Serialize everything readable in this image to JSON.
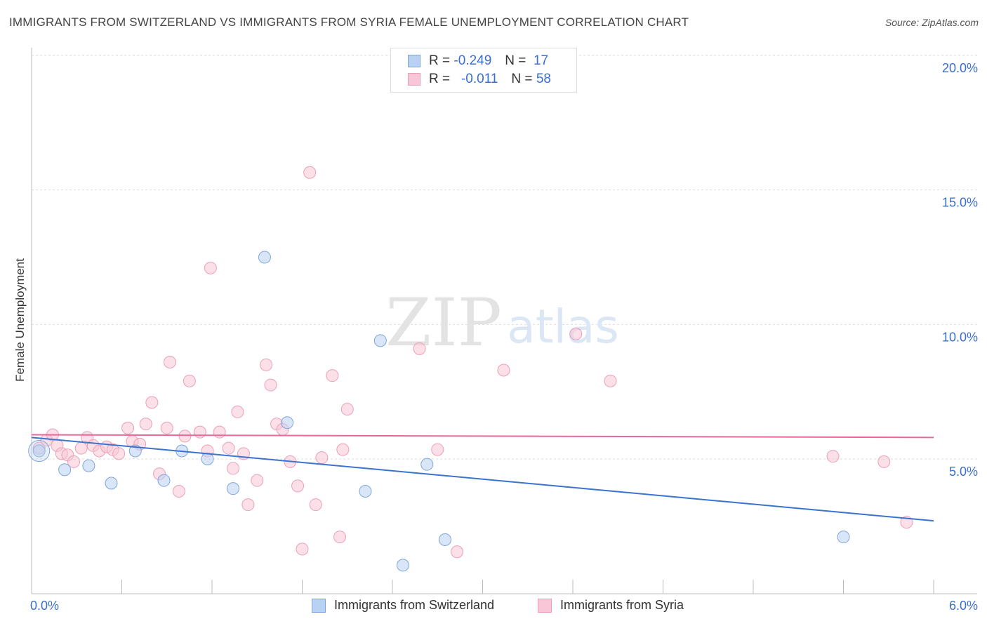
{
  "title": "IMMIGRANTS FROM SWITZERLAND VS IMMIGRANTS FROM SYRIA FEMALE UNEMPLOYMENT CORRELATION CHART",
  "source": "Source: ZipAtlas.com",
  "watermark": {
    "zip": "ZIP",
    "atlas": "atlas"
  },
  "legend": {
    "switzerland": {
      "r_label": "R =",
      "r_value": "-0.249",
      "n_label": "N =",
      "n_value": "17"
    },
    "syria": {
      "r_label": "R =",
      "r_value": "-0.011",
      "n_label": "N =",
      "n_value": "58"
    }
  },
  "colors": {
    "switzerland_fill": "#b9d1f2",
    "switzerland_stroke": "#7fa6dc",
    "switzerland_line": "#3a73d0",
    "syria_fill": "#f8c6d6",
    "syria_stroke": "#eba0b8",
    "syria_line": "#e8689a",
    "tick_label": "#3a6fcf",
    "grid": "#dddddd"
  },
  "chart_data": {
    "type": "scatter",
    "title": "IMMIGRANTS FROM SWITZERLAND VS IMMIGRANTS FROM SYRIA FEMALE UNEMPLOYMENT CORRELATION CHART",
    "xlabel": "",
    "ylabel": "Female Unemployment",
    "xlim": [
      0,
      6
    ],
    "ylim": [
      0,
      20.5
    ],
    "x_tick_labels": [
      "0.0%",
      "6.0%"
    ],
    "y_ticks": [
      5,
      10,
      15,
      20
    ],
    "y_tick_labels": [
      "5.0%",
      "10.0%",
      "15.0%",
      "20.0%"
    ],
    "series": [
      {
        "name": "Immigrants from Switzerland",
        "r": -0.249,
        "n": 17,
        "points": [
          {
            "x": 0.05,
            "y": 5.3
          },
          {
            "x": 0.22,
            "y": 4.6
          },
          {
            "x": 0.38,
            "y": 4.75
          },
          {
            "x": 0.53,
            "y": 4.1
          },
          {
            "x": 0.69,
            "y": 5.3
          },
          {
            "x": 0.88,
            "y": 4.2
          },
          {
            "x": 1.0,
            "y": 5.3
          },
          {
            "x": 1.17,
            "y": 5.0
          },
          {
            "x": 1.34,
            "y": 3.9
          },
          {
            "x": 1.55,
            "y": 12.5
          },
          {
            "x": 1.7,
            "y": 6.35
          },
          {
            "x": 2.22,
            "y": 3.8
          },
          {
            "x": 2.32,
            "y": 9.4
          },
          {
            "x": 2.47,
            "y": 1.05
          },
          {
            "x": 2.63,
            "y": 4.8
          },
          {
            "x": 2.75,
            "y": 2.0
          },
          {
            "x": 5.4,
            "y": 2.1
          }
        ],
        "trend": {
          "x": [
            0,
            6
          ],
          "y": [
            5.8,
            2.7
          ]
        }
      },
      {
        "name": "Immigrants from Syria",
        "r": -0.011,
        "n": 58,
        "points": [
          {
            "x": 0.05,
            "y": 5.4
          },
          {
            "x": 0.1,
            "y": 5.7
          },
          {
            "x": 0.14,
            "y": 5.9
          },
          {
            "x": 0.17,
            "y": 5.5
          },
          {
            "x": 0.2,
            "y": 5.2
          },
          {
            "x": 0.24,
            "y": 5.15
          },
          {
            "x": 0.28,
            "y": 4.9
          },
          {
            "x": 0.33,
            "y": 5.4
          },
          {
            "x": 0.37,
            "y": 5.8
          },
          {
            "x": 0.41,
            "y": 5.5
          },
          {
            "x": 0.45,
            "y": 5.3
          },
          {
            "x": 0.5,
            "y": 5.45
          },
          {
            "x": 0.54,
            "y": 5.35
          },
          {
            "x": 0.58,
            "y": 5.2
          },
          {
            "x": 0.64,
            "y": 6.15
          },
          {
            "x": 0.67,
            "y": 5.65
          },
          {
            "x": 0.72,
            "y": 5.55
          },
          {
            "x": 0.76,
            "y": 6.3
          },
          {
            "x": 0.8,
            "y": 7.1
          },
          {
            "x": 0.85,
            "y": 4.45
          },
          {
            "x": 0.9,
            "y": 6.15
          },
          {
            "x": 0.92,
            "y": 8.6
          },
          {
            "x": 0.98,
            "y": 3.8
          },
          {
            "x": 1.02,
            "y": 5.85
          },
          {
            "x": 1.05,
            "y": 7.9
          },
          {
            "x": 1.12,
            "y": 6.0
          },
          {
            "x": 1.17,
            "y": 5.3
          },
          {
            "x": 1.19,
            "y": 12.1
          },
          {
            "x": 1.25,
            "y": 6.0
          },
          {
            "x": 1.31,
            "y": 5.4
          },
          {
            "x": 1.34,
            "y": 4.65
          },
          {
            "x": 1.37,
            "y": 6.75
          },
          {
            "x": 1.41,
            "y": 5.2
          },
          {
            "x": 1.44,
            "y": 3.3
          },
          {
            "x": 1.5,
            "y": 4.2
          },
          {
            "x": 1.56,
            "y": 8.5
          },
          {
            "x": 1.59,
            "y": 7.75
          },
          {
            "x": 1.63,
            "y": 6.3
          },
          {
            "x": 1.67,
            "y": 6.1
          },
          {
            "x": 1.72,
            "y": 4.9
          },
          {
            "x": 1.77,
            "y": 4.0
          },
          {
            "x": 1.8,
            "y": 1.65
          },
          {
            "x": 1.85,
            "y": 15.65
          },
          {
            "x": 1.89,
            "y": 3.3
          },
          {
            "x": 1.93,
            "y": 5.05
          },
          {
            "x": 2.0,
            "y": 8.1
          },
          {
            "x": 2.05,
            "y": 2.1
          },
          {
            "x": 2.07,
            "y": 5.35
          },
          {
            "x": 2.1,
            "y": 6.85
          },
          {
            "x": 2.58,
            "y": 9.1
          },
          {
            "x": 2.7,
            "y": 5.35
          },
          {
            "x": 2.83,
            "y": 1.55
          },
          {
            "x": 3.14,
            "y": 8.3
          },
          {
            "x": 3.62,
            "y": 9.65
          },
          {
            "x": 3.85,
            "y": 7.9
          },
          {
            "x": 5.33,
            "y": 5.1
          },
          {
            "x": 5.67,
            "y": 4.9
          },
          {
            "x": 5.82,
            "y": 2.65
          }
        ],
        "trend": {
          "x": [
            0,
            6
          ],
          "y": [
            5.9,
            5.8
          ]
        }
      }
    ]
  },
  "bottom_legend": {
    "switzerland_label": "Immigrants from Switzerland",
    "syria_label": "Immigrants from Syria"
  }
}
